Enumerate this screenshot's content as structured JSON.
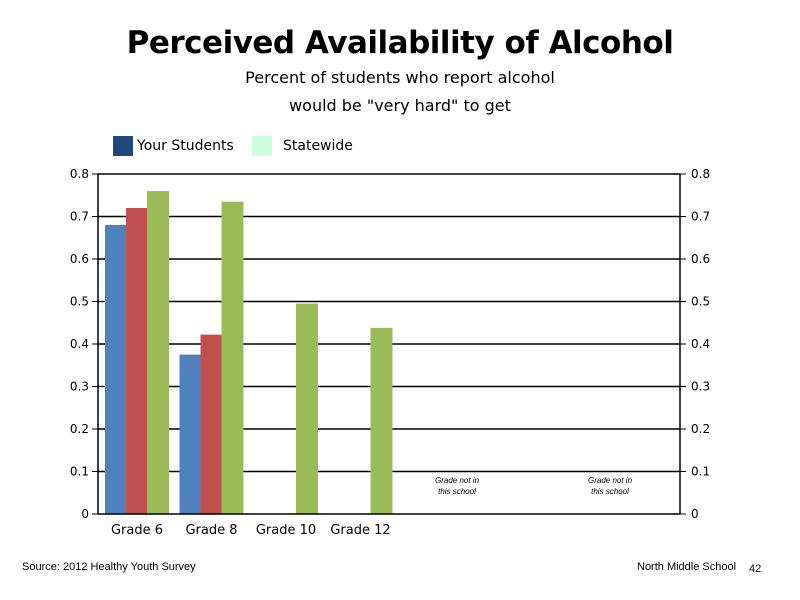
{
  "slide": {
    "title": "Perceived Availability of Alcohol",
    "subtitle_line1": "Percent of students who report alcohol",
    "subtitle_line2": "would be \"very hard\" to get",
    "source": "Source: 2012 Healthy Youth Survey",
    "school": "North Middle  School",
    "page_number": "42"
  },
  "legend": [
    {
      "label": "Your Students",
      "color": "#1F497D"
    },
    {
      "label": "Statewide",
      "color": "#CCFFDD"
    }
  ],
  "chart_data": {
    "type": "bar",
    "categories": [
      "Grade 6",
      "Grade 8",
      "Grade 10",
      "Grade 12",
      "",
      ""
    ],
    "series": [
      {
        "color": "#4F81BD",
        "values": [
          0.68,
          0.375,
          null,
          null,
          null,
          null
        ]
      },
      {
        "color": "#C0504D",
        "values": [
          0.72,
          0.422,
          null,
          null,
          null,
          null
        ]
      },
      {
        "color": "#9BBB59",
        "values": [
          0.76,
          0.735,
          0.495,
          0.438,
          null,
          null
        ]
      }
    ],
    "ylim": [
      0,
      0.8
    ],
    "yticks": [
      "0",
      "0.1",
      "0.2",
      "0.3",
      "0.4",
      "0.5",
      "0.6",
      "0.7",
      "0.8"
    ],
    "grid": true,
    "annotations": [
      {
        "category_index": 4,
        "line1": "Grade not in",
        "line2": "this school"
      },
      {
        "category_index": 5,
        "line1": "Grade not in",
        "line2": "this school"
      }
    ]
  }
}
